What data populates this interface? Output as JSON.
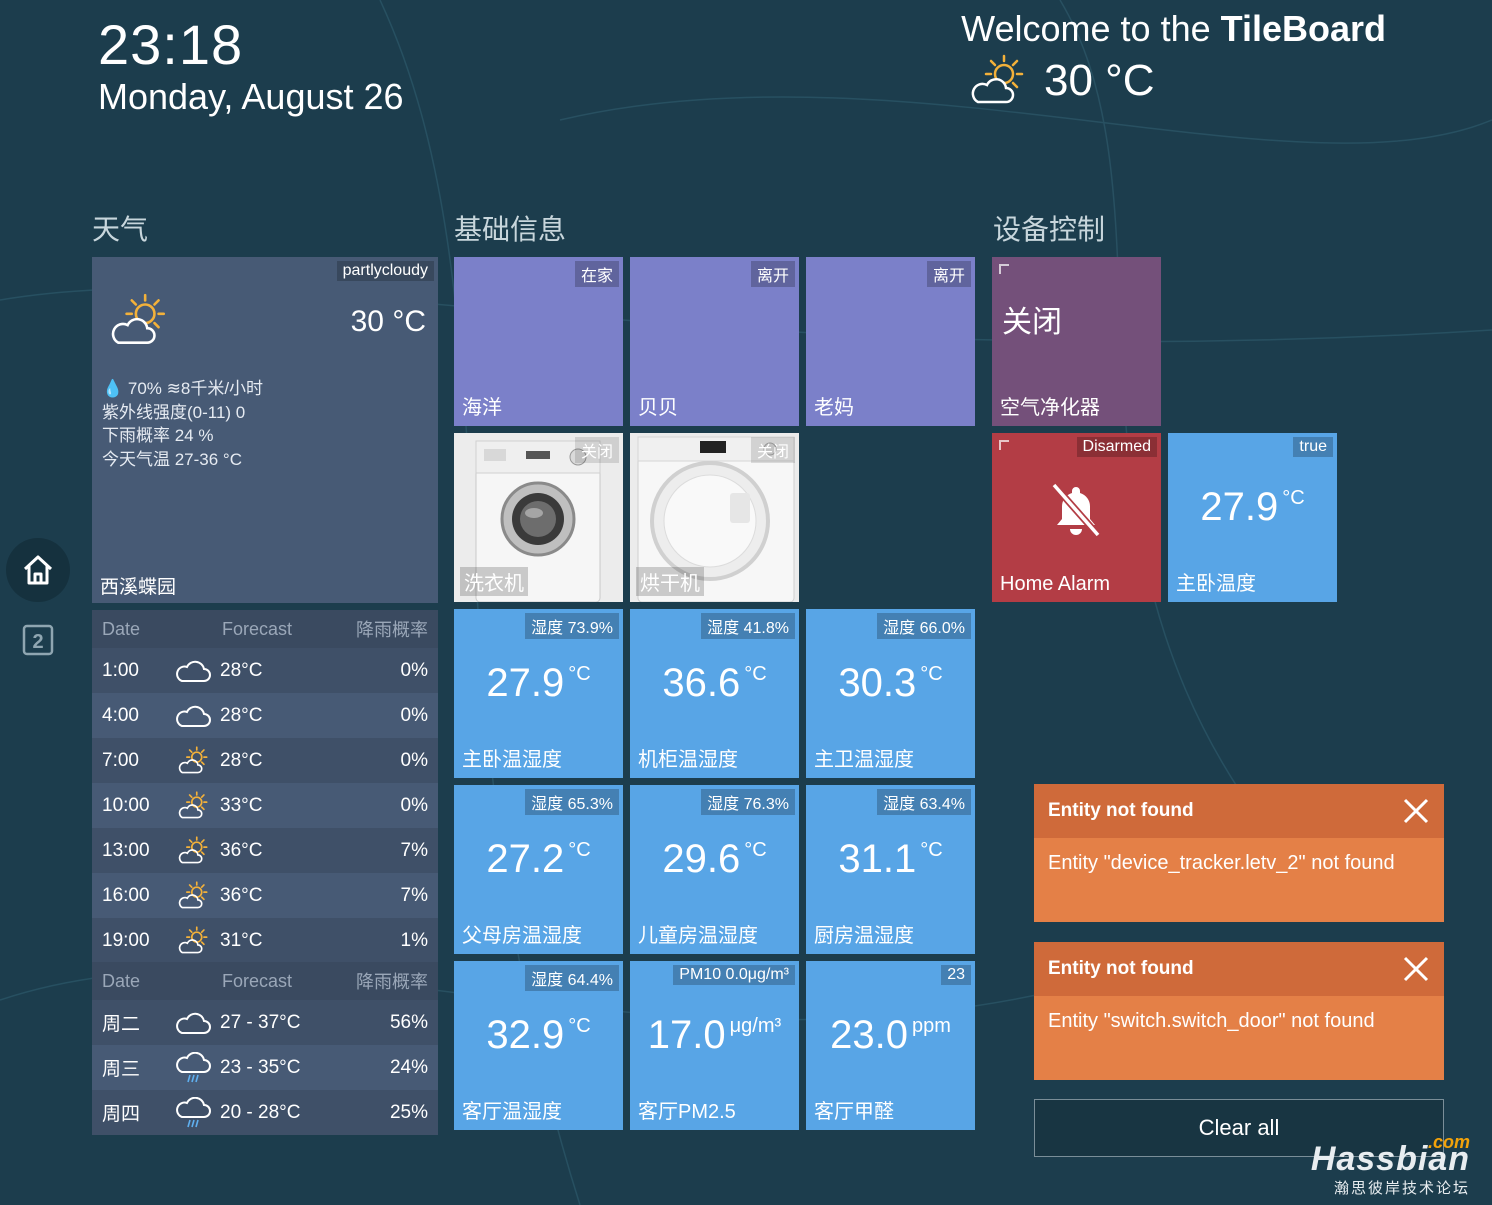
{
  "header": {
    "time": "23:18",
    "date": "Monday, August 26",
    "welcome_prefix": "Welcome to the ",
    "welcome_brand": "TileBoard",
    "weather_temp": "30 °C",
    "weather_icon": "partly-cloudy-icon"
  },
  "nav": {
    "home_icon": "home-icon",
    "page2_label": "2"
  },
  "sections": {
    "weather": "天气",
    "basic": "基础信息",
    "devices": "设备控制"
  },
  "weather_card": {
    "condition": "partlycloudy",
    "temp": "30 °C",
    "line1": "💧 70%  ≋8千米/小时",
    "line2": "紫外线强度(0-11) 0",
    "line3": "下雨概率 24 %",
    "line4": "今天气温 27-36 °C",
    "city": "西溪蝶园"
  },
  "hourly_forecast": {
    "headers": [
      "Date",
      "Forecast",
      "降雨概率"
    ],
    "rows": [
      {
        "time": "1:00",
        "icon": "cloud-icon",
        "temp": "28°C",
        "rain": "0%"
      },
      {
        "time": "4:00",
        "icon": "cloud-icon",
        "temp": "28°C",
        "rain": "0%"
      },
      {
        "time": "7:00",
        "icon": "partly-cloudy-icon",
        "temp": "28°C",
        "rain": "0%"
      },
      {
        "time": "10:00",
        "icon": "partly-cloudy-icon",
        "temp": "33°C",
        "rain": "0%"
      },
      {
        "time": "13:00",
        "icon": "partly-cloudy-icon",
        "temp": "36°C",
        "rain": "7%"
      },
      {
        "time": "16:00",
        "icon": "partly-cloudy-icon",
        "temp": "36°C",
        "rain": "7%"
      },
      {
        "time": "19:00",
        "icon": "partly-cloudy-icon",
        "temp": "31°C",
        "rain": "1%"
      }
    ]
  },
  "daily_forecast": {
    "headers": [
      "Date",
      "Forecast",
      "降雨概率"
    ],
    "rows": [
      {
        "day": "周二",
        "icon": "cloud-icon",
        "temp": "27 - 37°C",
        "rain": "56%"
      },
      {
        "day": "周三",
        "icon": "rain-icon",
        "temp": "23 - 35°C",
        "rain": "24%"
      },
      {
        "day": "周四",
        "icon": "rain-icon",
        "temp": "20 - 28°C",
        "rain": "25%"
      }
    ]
  },
  "presence": [
    {
      "name": "海洋",
      "state": "在家"
    },
    {
      "name": "贝贝",
      "state": "离开"
    },
    {
      "name": "老妈",
      "state": "离开"
    }
  ],
  "appliances": [
    {
      "name": "洗衣机",
      "state": "关闭",
      "icon": "washing-machine-icon"
    },
    {
      "name": "烘干机",
      "state": "关闭",
      "icon": "dryer-icon"
    }
  ],
  "sensors": [
    {
      "name": "主卧温湿度",
      "badge": "湿度 73.9%",
      "value": "27.9",
      "unit": "°C"
    },
    {
      "name": "机柜温湿度",
      "badge": "湿度 41.8%",
      "value": "36.6",
      "unit": "°C"
    },
    {
      "name": "主卫温湿度",
      "badge": "湿度 66.0%",
      "value": "30.3",
      "unit": "°C"
    },
    {
      "name": "父母房温湿度",
      "badge": "湿度 65.3%",
      "value": "27.2",
      "unit": "°C"
    },
    {
      "name": "儿童房温湿度",
      "badge": "湿度 76.3%",
      "value": "29.6",
      "unit": "°C"
    },
    {
      "name": "厨房温湿度",
      "badge": "湿度 63.4%",
      "value": "31.1",
      "unit": "°C"
    },
    {
      "name": "客厅温湿度",
      "badge": "湿度 64.4%",
      "value": "32.9",
      "unit": "°C"
    },
    {
      "name": "客厅PM2.5",
      "badge": "PM10 0.0μg/m³",
      "value": "17.0",
      "unit": "μg/m³"
    },
    {
      "name": "客厅甲醛",
      "badge": "23",
      "value": "23.0",
      "unit": "ppm"
    }
  ],
  "devices": {
    "purifier": {
      "name": "空气净化器",
      "state": "关闭"
    },
    "alarm": {
      "name": "Home Alarm",
      "state": "Disarmed",
      "icon": "bell-off-icon"
    },
    "bedroom_temp": {
      "name": "主卧温度",
      "badge": "true",
      "value": "27.9",
      "unit": "°C"
    }
  },
  "notifications": [
    {
      "title": "Entity not found",
      "body": "Entity \"device_tracker.letv_2\" not found"
    },
    {
      "title": "Entity not found",
      "body": "Entity \"switch.switch_door\" not found"
    }
  ],
  "clear_all": "Clear all",
  "watermark": {
    "com": ".com",
    "name": "Hassbian",
    "sub": "瀚思彼岸技术论坛"
  },
  "colors": {
    "background": "#1c3d4d",
    "presence_tile": "#7b80c9",
    "sensor_tile": "#58a5e6",
    "purifier_tile": "#74507a",
    "alarm_tile": "#b33d45",
    "notification": "#e48047"
  }
}
